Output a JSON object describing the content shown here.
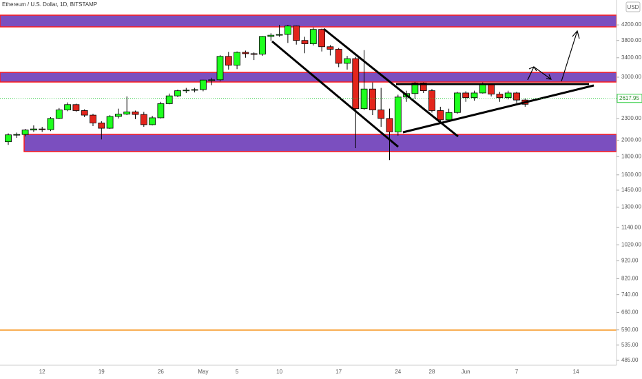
{
  "chart_data": {
    "type": "candlestick",
    "title": "Ethereum / U.S. Dollar, 1D, BITSTAMP",
    "currency": "USD",
    "log_scale": true,
    "up_color": "#1eff1e",
    "down_color": "#e3251c",
    "categories": [
      null,
      null,
      null,
      null,
      "12",
      null,
      null,
      null,
      null,
      null,
      null,
      "19",
      null,
      null,
      null,
      null,
      null,
      null,
      "26",
      null,
      null,
      null,
      null,
      "May",
      null,
      null,
      null,
      "5",
      null,
      null,
      null,
      null,
      "10",
      null,
      null,
      null,
      null,
      null,
      null,
      "17",
      null,
      null,
      null,
      null,
      null,
      null,
      "24",
      null,
      null,
      null,
      "28",
      null,
      null,
      null,
      "Jun",
      null,
      null,
      null,
      null,
      null,
      "7",
      null,
      null,
      null,
      null,
      null,
      null,
      "14"
    ],
    "open": [
      1980,
      2070,
      2075,
      2135,
      2150,
      2140,
      2300,
      2430,
      2515,
      2420,
      2350,
      2235,
      2160,
      2330,
      2365,
      2400,
      2360,
      2210,
      2310,
      2530,
      2660,
      2750,
      2760,
      2770,
      2945,
      2950,
      3430,
      3240,
      3520,
      3490,
      3480,
      3900,
      3930,
      3950,
      4170,
      3800,
      3720,
      4080,
      3650,
      3590,
      3280,
      3380,
      2450,
      2780,
      2430,
      2300,
      2110,
      2640,
      2700,
      2890,
      2750,
      2420,
      2280,
      2390,
      2710,
      2630,
      2710,
      2860,
      2690,
      2630,
      2710,
      2590,
      null,
      null,
      null,
      null,
      null,
      null
    ],
    "high": [
      2090,
      2100,
      2150,
      2200,
      2180,
      2320,
      2460,
      2550,
      2530,
      2440,
      2370,
      2260,
      2350,
      2450,
      2650,
      2420,
      2400,
      2340,
      2560,
      2700,
      2770,
      2800,
      2800,
      2950,
      2990,
      3460,
      3530,
      3540,
      3560,
      3520,
      3910,
      3980,
      4200,
      4200,
      4180,
      3890,
      4130,
      4100,
      3690,
      3620,
      3440,
      3420,
      3570,
      2900,
      2800,
      2450,
      2680,
      2750,
      2910,
      2900,
      2780,
      2480,
      2450,
      2730,
      2740,
      2750,
      2900,
      2880,
      2730,
      2750,
      2730,
      2620,
      null,
      null,
      null,
      null,
      null,
      null
    ],
    "low": [
      1940,
      2030,
      2050,
      2110,
      2110,
      2120,
      2290,
      2410,
      2400,
      2320,
      2190,
      2010,
      2150,
      2300,
      2350,
      2290,
      2180,
      2200,
      2300,
      2520,
      2640,
      2710,
      2720,
      2740,
      2850,
      2920,
      3150,
      3160,
      3400,
      3350,
      3440,
      3790,
      3890,
      3740,
      3700,
      3500,
      3680,
      3540,
      3450,
      3200,
      3150,
      1900,
      2430,
      2350,
      2180,
      1760,
      2060,
      2560,
      2610,
      2710,
      2390,
      2220,
      2250,
      2370,
      2560,
      2580,
      2700,
      2650,
      2560,
      2600,
      2540,
      2480,
      null,
      null,
      null,
      null,
      null,
      null
    ],
    "close": [
      2070,
      2075,
      2135,
      2150,
      2140,
      2300,
      2430,
      2515,
      2420,
      2350,
      2235,
      2160,
      2330,
      2365,
      2400,
      2360,
      2210,
      2310,
      2530,
      2660,
      2750,
      2760,
      2770,
      2945,
      2950,
      3430,
      3240,
      3520,
      3490,
      3480,
      3900,
      3930,
      3950,
      4170,
      3800,
      3720,
      4080,
      3650,
      3590,
      3280,
      3380,
      2450,
      2780,
      2430,
      2300,
      2110,
      2640,
      2700,
      2890,
      2750,
      2420,
      2280,
      2390,
      2710,
      2630,
      2710,
      2860,
      2690,
      2630,
      2710,
      2590,
      2520,
      null,
      null,
      null,
      null,
      null,
      null
    ],
    "last_price": 2617.95,
    "ylim": [
      470,
      4930
    ],
    "yticks": [
      {
        "value": 4200,
        "label": "4200.00"
      },
      {
        "value": 3800,
        "label": "3800.00"
      },
      {
        "value": 3400,
        "label": "3400.00"
      },
      {
        "value": 3000,
        "label": "3000.00"
      },
      {
        "value": 2300,
        "label": "2300.00"
      },
      {
        "value": 2000,
        "label": "2000.00"
      },
      {
        "value": 1800,
        "label": "1800.00"
      },
      {
        "value": 1600,
        "label": "1600.00"
      },
      {
        "value": 1450,
        "label": "1450.00"
      },
      {
        "value": 1300,
        "label": "1300.00"
      },
      {
        "value": 1140,
        "label": "1140.00"
      },
      {
        "value": 1020,
        "label": "1020.00"
      },
      {
        "value": 920,
        "label": "920.00"
      },
      {
        "value": 820,
        "label": "820.00"
      },
      {
        "value": 740,
        "label": "740.00"
      },
      {
        "value": 660,
        "label": "660.00"
      },
      {
        "value": 590,
        "label": "590.00"
      },
      {
        "value": 535,
        "label": "535.00"
      },
      {
        "value": 485,
        "label": "485.00"
      }
    ]
  }
}
